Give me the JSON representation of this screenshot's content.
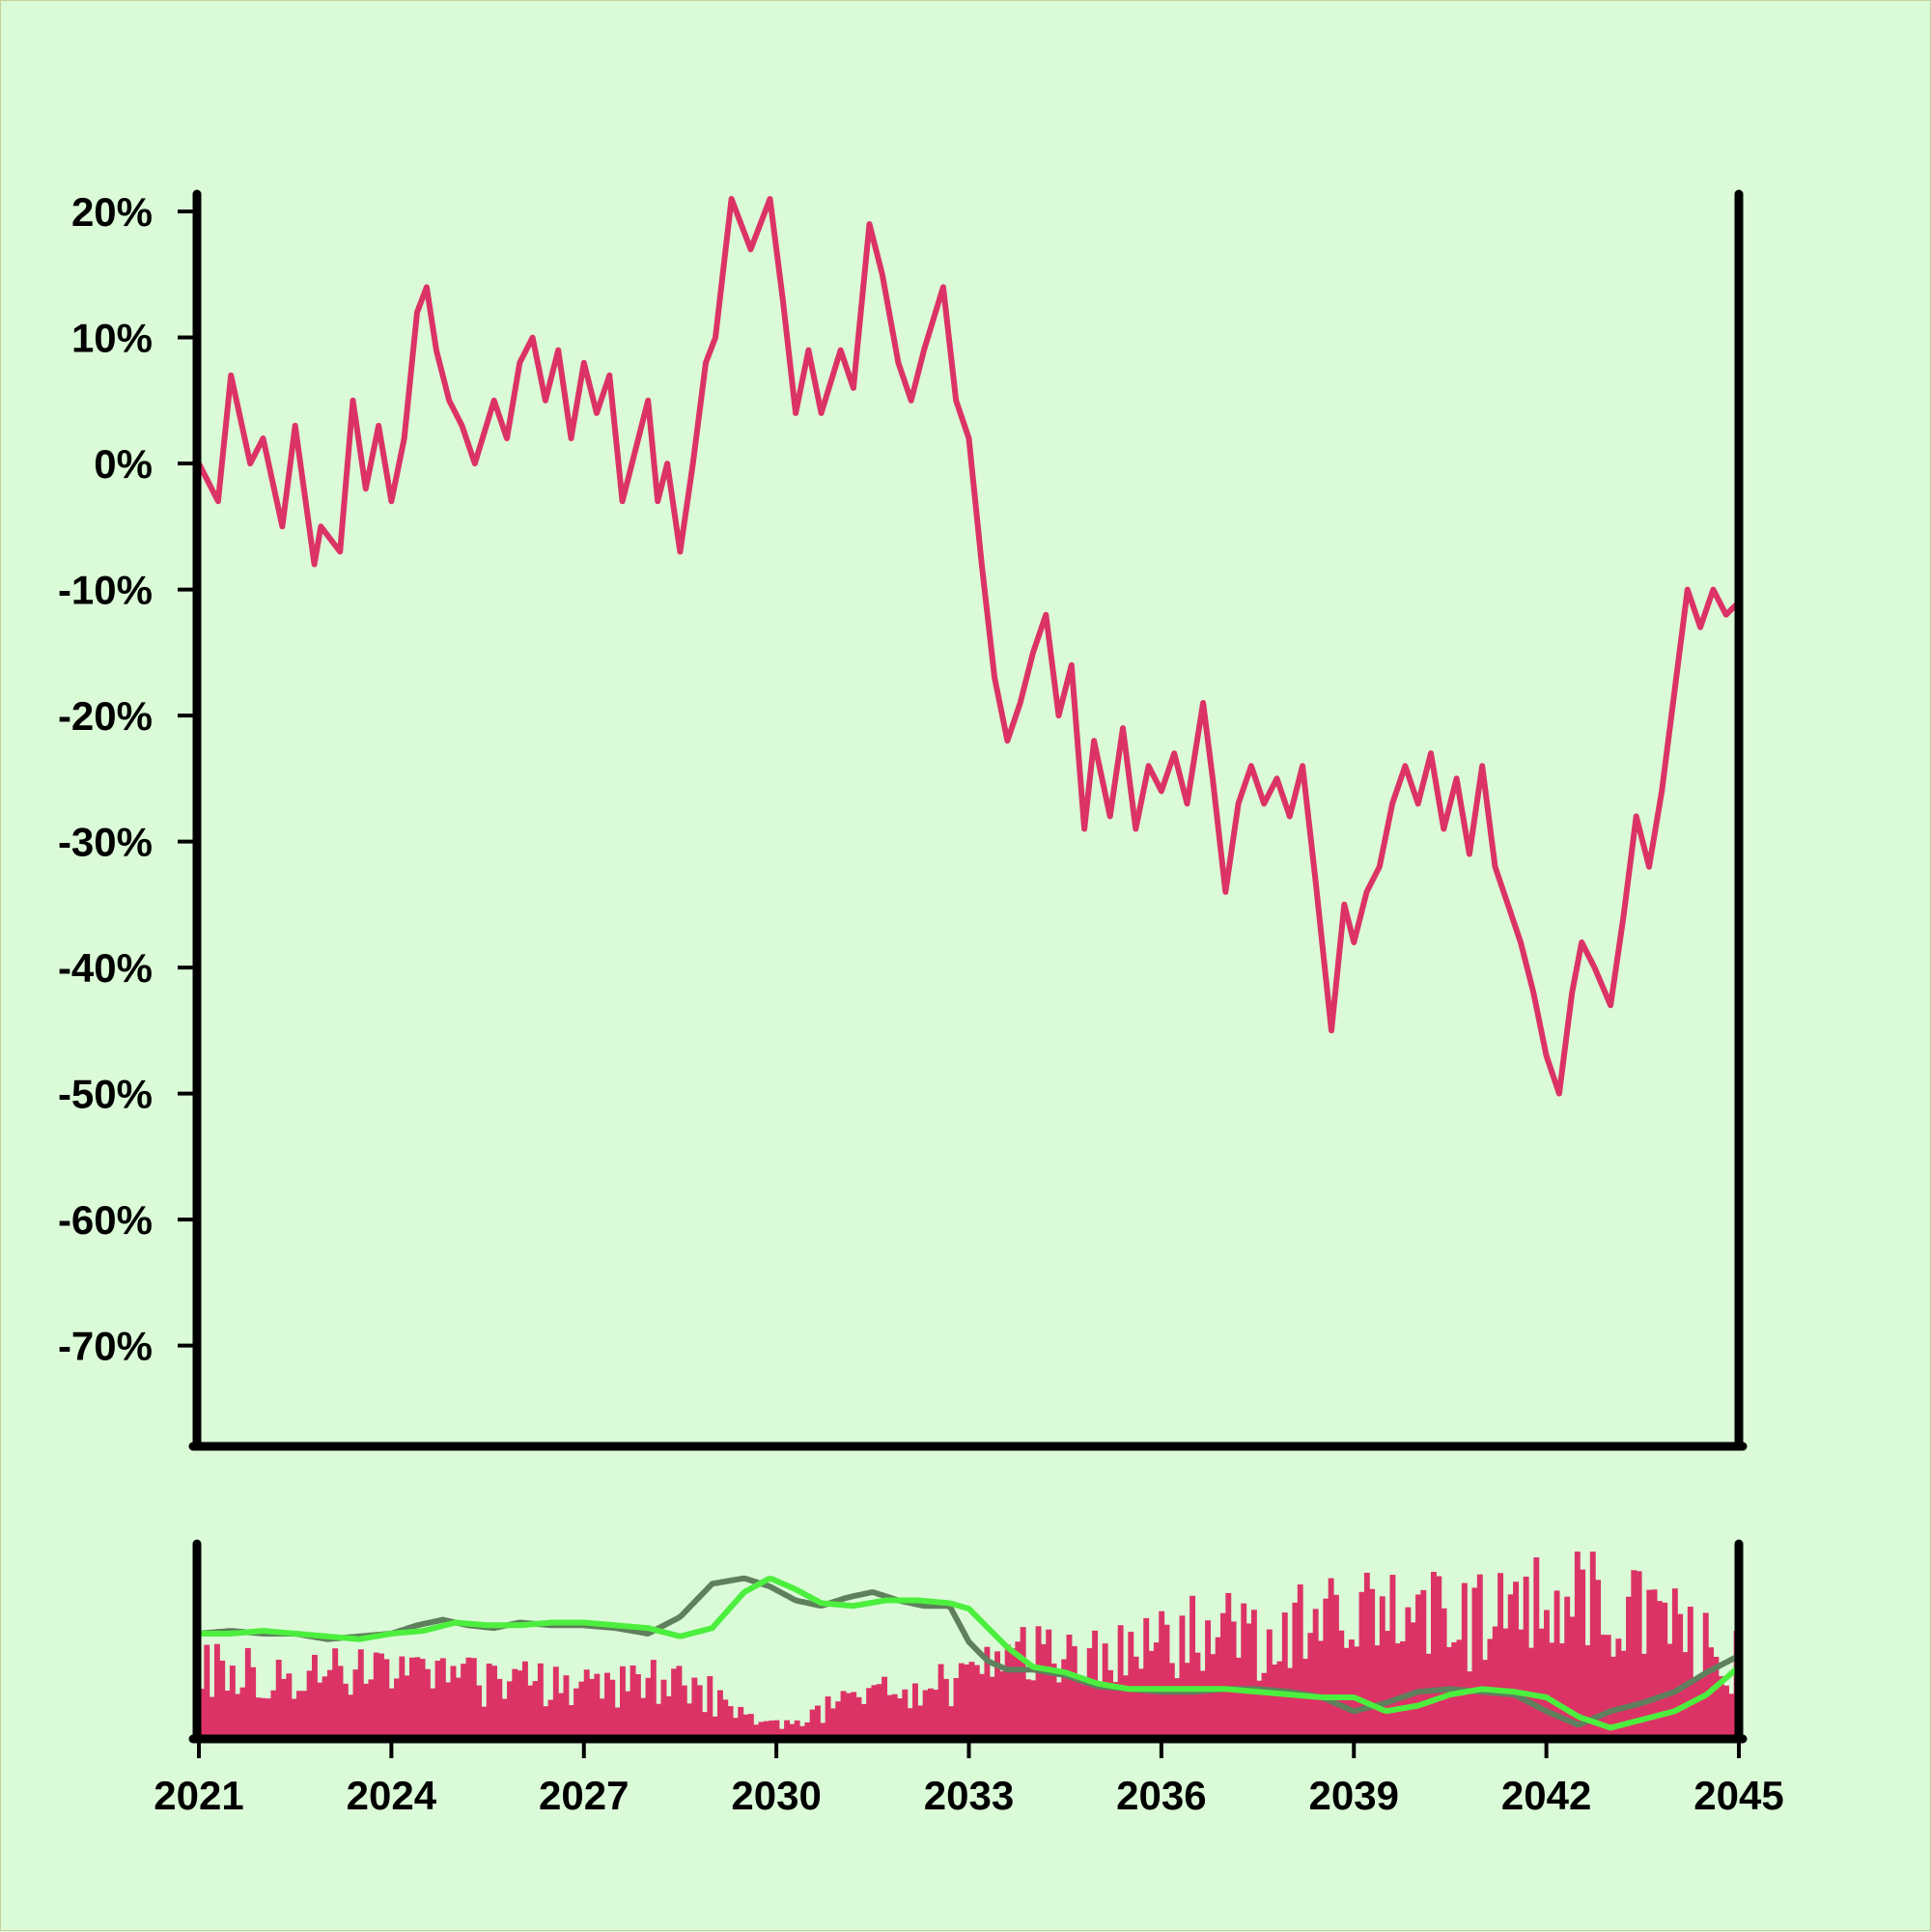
{
  "colors": {
    "background": "#dbfbd8",
    "main_line": "#dc3366",
    "volume_bars": "#dc3366",
    "ma_short": "#5f7f5d",
    "ma_long": "#4cef3e",
    "axis": "#000000"
  },
  "chart_data": [
    {
      "type": "line",
      "title": "",
      "xlabel": "",
      "ylabel": "",
      "ylim": [
        -78,
        21
      ],
      "xlim": [
        2021.0,
        2045.0
      ],
      "y_ticks": [
        20,
        10,
        0,
        -10,
        -20,
        -30,
        -40,
        -50,
        -60,
        -70
      ],
      "y_tick_labels": [
        "20%",
        "10%",
        "0%",
        "-10%",
        "-20%",
        "-30%",
        "-40%",
        "-50%",
        "-60%",
        "-70%"
      ],
      "grid": false,
      "legend": "none",
      "series": [
        {
          "x": [
            2021.0,
            2021.3,
            2021.5,
            2021.8,
            2022.0,
            2022.3,
            2022.5,
            2022.8,
            2022.9,
            2023.2,
            2023.4,
            2023.6,
            2023.8,
            2024.0,
            2024.2,
            2024.4,
            2024.55,
            2024.7,
            2024.9,
            2025.1,
            2025.3,
            2025.6,
            2025.8,
            2026.0,
            2026.2,
            2026.4,
            2026.6,
            2026.8,
            2027.0,
            2027.2,
            2027.4,
            2027.6,
            2027.8,
            2028.0,
            2028.15,
            2028.3,
            2028.5,
            2028.7,
            2028.9,
            2029.05,
            2029.3,
            2029.6,
            2029.9,
            2030.1,
            2030.3,
            2030.5,
            2030.7,
            2031.0,
            2031.2,
            2031.45,
            2031.65,
            2031.9,
            2032.1,
            2032.3,
            2032.6,
            2032.8,
            2033.0,
            2033.2,
            2033.4,
            2033.6,
            2033.8,
            2034.0,
            2034.2,
            2034.4,
            2034.6,
            2034.8,
            2034.95,
            2035.2,
            2035.4,
            2035.6,
            2035.8,
            2036.0,
            2036.2,
            2036.4,
            2036.65,
            2036.8,
            2037.0,
            2037.2,
            2037.4,
            2037.6,
            2037.8,
            2038.0,
            2038.2,
            2038.4,
            2038.65,
            2038.85,
            2039.0,
            2039.2,
            2039.4,
            2039.6,
            2039.8,
            2040.0,
            2040.2,
            2040.4,
            2040.6,
            2040.8,
            2041.0,
            2041.2,
            2041.4,
            2041.6,
            2041.8,
            2042.0,
            2042.2,
            2042.4,
            2042.55,
            2042.75,
            2043.0,
            2043.2,
            2043.4,
            2043.6,
            2043.8,
            2044.0,
            2044.2,
            2044.4,
            2044.6,
            2044.8,
            2045.0
          ],
          "values": [
            0,
            -3,
            7,
            0,
            2,
            -5,
            3,
            -8,
            -5,
            -7,
            5,
            -2,
            3,
            -3,
            2,
            12,
            14,
            9,
            5,
            3,
            0,
            5,
            2,
            8,
            10,
            5,
            9,
            2,
            8,
            4,
            7,
            -3,
            1,
            5,
            -3,
            0,
            -7,
            0,
            8,
            10,
            21,
            17,
            21,
            13,
            4,
            9,
            4,
            9,
            6,
            19,
            15,
            8,
            5,
            9,
            14,
            5,
            2,
            -8,
            -17,
            -22,
            -19,
            -15,
            -12,
            -20,
            -16,
            -29,
            -22,
            -28,
            -21,
            -29,
            -24,
            -26,
            -23,
            -27,
            -19,
            -25,
            -34,
            -27,
            -24,
            -27,
            -25,
            -28,
            -24,
            -33,
            -45,
            -35,
            -38,
            -34,
            -32,
            -27,
            -24,
            -27,
            -23,
            -29,
            -25,
            -31,
            -24,
            -32,
            -35,
            -38,
            -42,
            -47,
            -50,
            -42,
            -38,
            -40,
            -43,
            -36,
            -28,
            -32,
            -26,
            -18,
            -10,
            -13,
            -10,
            -12,
            -11
          ]
        }
      ]
    },
    {
      "type": "bar",
      "title": "",
      "xlabel": "",
      "ylabel": "",
      "xlim": [
        2021.0,
        2045.0
      ],
      "x_ticks": [
        2021,
        2024,
        2027,
        2030,
        2033,
        2036,
        2039,
        2042,
        2045
      ],
      "x_tick_labels": [
        "2021",
        "2024",
        "2027",
        "2030",
        "2033",
        "2036",
        "2039",
        "2042",
        "2045"
      ],
      "grid": false,
      "legend": "none",
      "bar_count": 300,
      "bar_profile": [
        [
          2021.0,
          0.35
        ],
        [
          2024.0,
          0.33
        ],
        [
          2027.0,
          0.26
        ],
        [
          2028.6,
          0.32
        ],
        [
          2029.4,
          0.12
        ],
        [
          2030.0,
          0.08
        ],
        [
          2031.0,
          0.18
        ],
        [
          2033.0,
          0.32
        ],
        [
          2034.0,
          0.45
        ],
        [
          2036.0,
          0.52
        ],
        [
          2038.0,
          0.55
        ],
        [
          2039.5,
          0.62
        ],
        [
          2041.0,
          0.6
        ],
        [
          2042.2,
          0.78
        ],
        [
          2043.5,
          0.62
        ],
        [
          2045.0,
          0.4
        ]
      ],
      "series": [
        {
          "x": [
            2021.0,
            2021.5,
            2022.0,
            2022.5,
            2023.0,
            2023.5,
            2024.0,
            2024.4,
            2024.8,
            2025.2,
            2025.6,
            2026.0,
            2026.5,
            2027.0,
            2027.5,
            2028.0,
            2028.5,
            2029.0,
            2029.5,
            2029.9,
            2030.3,
            2030.7,
            2031.1,
            2031.5,
            2031.9,
            2032.3,
            2032.7,
            2033.0,
            2033.3,
            2033.6,
            2034.0,
            2034.5,
            2035.0,
            2035.5,
            2036.0,
            2036.5,
            2037.0,
            2037.5,
            2038.0,
            2038.5,
            2039.0,
            2039.5,
            2040.0,
            2040.5,
            2041.0,
            2041.5,
            2042.0,
            2042.5,
            2043.0,
            2043.5,
            2044.0,
            2044.5,
            2045.0
          ],
          "values": [
            -5,
            -4,
            -5,
            -5,
            -7,
            -6,
            -5,
            -2,
            0,
            -2,
            -3,
            -1,
            -2,
            -2,
            -3,
            -5,
            1,
            13,
            15,
            12,
            7,
            5,
            8,
            10,
            7,
            5,
            5,
            -8,
            -15,
            -18,
            -18,
            -20,
            -24,
            -25,
            -26,
            -26,
            -25,
            -25,
            -26,
            -28,
            -33,
            -30,
            -26,
            -25,
            -26,
            -27,
            -33,
            -38,
            -33,
            -30,
            -26,
            -19,
            -13
          ]
        },
        {
          "x": [
            2021.0,
            2021.5,
            2022.0,
            2022.5,
            2023.0,
            2023.5,
            2024.0,
            2024.5,
            2025.0,
            2025.5,
            2026.0,
            2026.5,
            2027.0,
            2027.5,
            2028.0,
            2028.5,
            2029.0,
            2029.5,
            2029.9,
            2030.3,
            2030.7,
            2031.2,
            2031.7,
            2032.2,
            2032.7,
            2033.0,
            2033.3,
            2033.6,
            2034.0,
            2034.5,
            2035.0,
            2035.5,
            2036.0,
            2036.5,
            2037.0,
            2037.5,
            2038.0,
            2038.5,
            2039.0,
            2039.5,
            2040.0,
            2040.5,
            2041.0,
            2041.5,
            2042.0,
            2042.5,
            2043.0,
            2043.5,
            2044.0,
            2044.5,
            2045.0
          ],
          "values": [
            -5,
            -5,
            -4,
            -5,
            -6,
            -7,
            -5,
            -4,
            -1,
            -2,
            -2,
            -1,
            -1,
            -2,
            -3,
            -6,
            -3,
            10,
            15,
            11,
            6,
            5,
            7,
            7,
            6,
            4,
            -3,
            -10,
            -17,
            -19,
            -23,
            -25,
            -25,
            -25,
            -25,
            -26,
            -27,
            -28,
            -28,
            -33,
            -31,
            -27,
            -25,
            -26,
            -28,
            -35,
            -39,
            -36,
            -33,
            -27,
            -17
          ]
        }
      ]
    }
  ]
}
